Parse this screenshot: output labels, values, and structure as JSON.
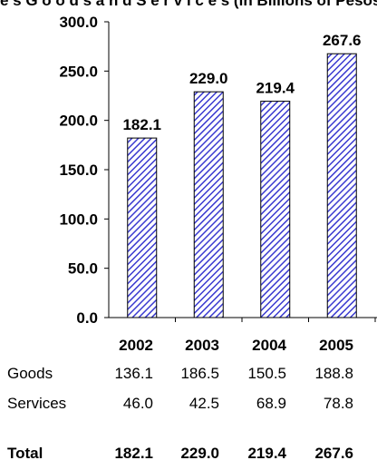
{
  "caption": "e s G o o d s a n d S e r v i c e s (in Billions of Pesos)",
  "chart_data": {
    "type": "bar",
    "categories": [
      "2002",
      "2003",
      "2004",
      "2005"
    ],
    "values": [
      182.1,
      229.0,
      219.4,
      267.6
    ],
    "value_labels": [
      "182.1",
      "229.0",
      "219.4",
      "267.6"
    ],
    "y_ticks": [
      "0.0",
      "50.0",
      "100.0",
      "150.0",
      "200.0",
      "250.0",
      "300.0"
    ],
    "ylim": [
      0,
      300
    ],
    "bar_color": "#3a3ad0",
    "bar_pattern": "diagonal-hatch"
  },
  "table": {
    "header": [
      "2002",
      "2003",
      "2004",
      "2005"
    ],
    "rows": [
      {
        "label": "Goods",
        "values": [
          "136.1",
          "186.5",
          "150.5",
          "188.8"
        ]
      },
      {
        "label": "Services",
        "values": [
          "46.0",
          "42.5",
          "68.9",
          "78.8"
        ]
      }
    ],
    "total": {
      "label": "Total",
      "values": [
        "182.1",
        "229.0",
        "219.4",
        "267.6"
      ]
    }
  }
}
